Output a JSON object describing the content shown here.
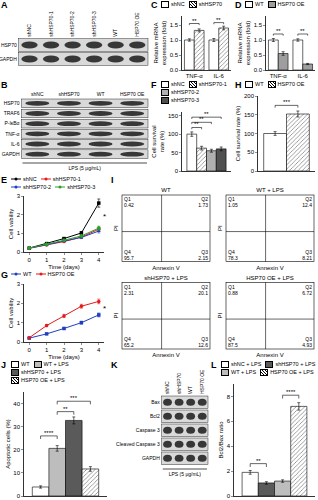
{
  "chart_data": [
    {
      "type": "blot",
      "panel": "A",
      "rows": [
        "HSP70",
        "GAPDH"
      ],
      "lanes": [
        "shNC",
        "shHSP70-1",
        "shHSP70-2",
        "shHSP70-3",
        "WT",
        "HSP70 OE"
      ]
    },
    {
      "type": "bar",
      "panel": "C",
      "categories": [
        "TNF-α",
        "IL-6"
      ],
      "y_label": "Relative mRNA expression (fold)",
      "ylim": [
        0,
        1.8
      ],
      "yticks": [
        {
          "value": 0,
          "label": "0.0"
        },
        {
          "value": 0.5,
          "label": "0.5"
        },
        {
          "value": 1,
          "label": "1.0"
        },
        {
          "value": 1.5,
          "label": "1.5"
        }
      ],
      "legend": "top",
      "series": [
        {
          "name": "shNC",
          "color": "#ffffff",
          "values": [
            1.0,
            1.0
          ],
          "errors": [
            0.04,
            0.05
          ]
        },
        {
          "name": "shHSP70",
          "color": "#ffffff",
          "marker": "hatch",
          "values": [
            1.32,
            1.4
          ],
          "errors": [
            0.05,
            0.06
          ]
        }
      ],
      "significance": [
        {
          "category": "TNF-α",
          "from": "shNC",
          "to": "shHSP70",
          "y": 1.55,
          "label": "**"
        },
        {
          "category": "IL-6",
          "from": "shNC",
          "to": "shHSP70",
          "y": 1.58,
          "label": "**"
        }
      ]
    },
    {
      "type": "bar",
      "panel": "D",
      "categories": [
        "TNF-α",
        "IL-6"
      ],
      "y_label": "Relative mRNA expression (fold)",
      "ylim": [
        0,
        1.8
      ],
      "yticks": [
        {
          "value": 0,
          "label": "0.0"
        },
        {
          "value": 0.5,
          "label": "0.5"
        },
        {
          "value": 1,
          "label": "1.0"
        },
        {
          "value": 1.5,
          "label": "1.5"
        }
      ],
      "legend": "top",
      "series": [
        {
          "name": "WT",
          "color": "#ffffff",
          "values": [
            1.0,
            1.0
          ],
          "errors": [
            0.05,
            0.04
          ]
        },
        {
          "name": "HSP70 OE",
          "color": "#9e9e9e",
          "values": [
            0.55,
            0.2
          ],
          "errors": [
            0.06,
            0.02
          ]
        }
      ],
      "significance": [
        {
          "category": "TNF-α",
          "from": "WT",
          "to": "HSP70 OE",
          "y": 1.2,
          "label": "**"
        },
        {
          "category": "IL-6",
          "from": "WT",
          "to": "HSP70 OE",
          "y": 1.2,
          "label": "**"
        }
      ]
    },
    {
      "type": "blot",
      "panel": "B",
      "rows": [
        "HSP70",
        "TRAF6",
        "P-IκBα",
        "TNF-α",
        "IL-6",
        "GAPDH"
      ],
      "lanes": [
        "shNC",
        "shHSP70",
        "WT",
        "HSP70 OE"
      ],
      "treatment": "LPS (5 μg/mL)"
    },
    {
      "type": "bar",
      "panel": "F",
      "categories": [
        null
      ],
      "y_label": "Cell survival rate (%)",
      "tick_labels": "y",
      "ylim": [
        0,
        160
      ],
      "yticks": [
        0,
        50,
        100,
        150
      ],
      "legend": "top",
      "series": [
        {
          "name": "shNC",
          "color": "#ffffff",
          "values": [
            100
          ],
          "errors": [
            6
          ]
        },
        {
          "name": "shHSP70-1",
          "color": "#ffffff",
          "marker": "hatch",
          "values": [
            62
          ],
          "errors": [
            5
          ]
        },
        {
          "name": "shHSP70-2",
          "color": "#b0b0b0",
          "values": [
            55
          ],
          "errors": [
            4
          ]
        },
        {
          "name": "shHSP70-3",
          "color": "#505050",
          "values": [
            60
          ],
          "errors": [
            5
          ]
        }
      ],
      "significance": [
        {
          "from": "shNC",
          "to": "shHSP70-1",
          "y": 118,
          "label": "**"
        },
        {
          "from": "shNC",
          "to": "shHSP70-2",
          "y": 132,
          "label": "**"
        },
        {
          "from": "shNC",
          "to": "shHSP70-3",
          "y": 146,
          "label": "**"
        }
      ]
    },
    {
      "type": "bar",
      "panel": "H",
      "categories": [
        null
      ],
      "y_label": "Cell survival rate (%)",
      "tick_labels": "y",
      "ylim": [
        0,
        200
      ],
      "yticks": [
        0,
        50,
        100,
        150,
        200
      ],
      "legend": "top",
      "series": [
        {
          "name": "WT",
          "color": "#ffffff",
          "values": [
            100
          ],
          "errors": [
            5
          ]
        },
        {
          "name": "HSP70 OE",
          "color": "#ffffff",
          "marker": "hatch",
          "values": [
            152
          ],
          "errors": [
            8
          ]
        }
      ],
      "significance": [
        {
          "from": "WT",
          "to": "HSP70 OE",
          "y": 175,
          "label": "***"
        }
      ]
    },
    {
      "type": "line",
      "panel": "E",
      "x": [
        0,
        1,
        2,
        3,
        4
      ],
      "xlim": [
        -0.3,
        4.3
      ],
      "xticks": [
        0,
        1,
        2,
        3,
        4
      ],
      "ylim": [
        0,
        3
      ],
      "yticks": [
        0,
        1,
        2,
        3
      ],
      "x_label": "Time (days)",
      "y_label": "Cell vability",
      "legend": "top",
      "series": [
        {
          "name": "shNC",
          "color": "#000000",
          "marker": "square",
          "values": [
            0.21,
            0.45,
            0.72,
            1.02,
            2.62
          ],
          "errors": [
            0.02,
            0.04,
            0.05,
            0.08,
            0.22
          ]
        },
        {
          "name": "shHSP70-1",
          "color": "#e41a1c",
          "marker": "circle",
          "values": [
            0.2,
            0.38,
            0.56,
            0.8,
            1.22
          ],
          "errors": [
            0.02,
            0.03,
            0.04,
            0.06,
            0.1
          ]
        },
        {
          "name": "shHSP70-2",
          "color": "#1f3fbf",
          "marker": "triangle-up",
          "values": [
            0.2,
            0.4,
            0.6,
            0.78,
            1.12
          ],
          "errors": [
            0.02,
            0.03,
            0.04,
            0.06,
            0.1
          ]
        },
        {
          "name": "shHSP70-3",
          "color": "#2ca02c",
          "marker": "diamond",
          "values": [
            0.21,
            0.41,
            0.63,
            0.86,
            1.28
          ],
          "errors": [
            0.02,
            0.03,
            0.04,
            0.06,
            0.1
          ]
        }
      ],
      "annotations": [
        {
          "text": "*",
          "x": 4,
          "y": 1.9
        }
      ]
    },
    {
      "type": "line",
      "panel": "G",
      "x": [
        0,
        1,
        2,
        3,
        4
      ],
      "xlim": [
        -0.3,
        4.3
      ],
      "xticks": [
        0,
        1,
        2,
        3,
        4
      ],
      "ylim": [
        0,
        3
      ],
      "yticks": [
        0,
        1,
        2,
        3
      ],
      "x_label": "Time (days)",
      "y_label": "Cell vability",
      "legend": "top",
      "series": [
        {
          "name": "WT",
          "color": "#1f3fbf",
          "marker": "square",
          "values": [
            0.2,
            0.42,
            0.7,
            1.0,
            1.4
          ],
          "errors": [
            0.02,
            0.03,
            0.05,
            0.07,
            0.1
          ]
        },
        {
          "name": "HSP70 OE",
          "color": "#e41a1c",
          "marker": "circle",
          "values": [
            0.22,
            0.85,
            1.35,
            1.85,
            2.1
          ],
          "errors": [
            0.02,
            0.06,
            0.08,
            0.1,
            0.12
          ]
        }
      ],
      "annotations": [
        {
          "text": "*",
          "x": 4,
          "y": 1.75
        }
      ]
    },
    {
      "type": "flow",
      "panel": "I",
      "x_label": "Annexin V",
      "y_label": "PI",
      "plots": [
        {
          "title": "WT",
          "quadrants": [
            {
              "label": "Q1",
              "value": 0.42
            },
            {
              "label": "Q2",
              "value": 1.73
            },
            {
              "label": "Q3",
              "value": 2.15
            },
            {
              "label": "Q4",
              "value": 95.7
            }
          ]
        },
        {
          "title": "WT + LPS",
          "quadrants": [
            {
              "label": "Q1",
              "value": 1.05
            },
            {
              "label": "Q2",
              "value": 12.4
            },
            {
              "label": "Q3",
              "value": 8.21
            },
            {
              "label": "Q4",
              "value": 78.3
            }
          ]
        },
        {
          "title": "shHSP70 + LPS",
          "quadrants": [
            {
              "label": "Q1",
              "value": 2.31
            },
            {
              "label": "Q2",
              "value": 20.1
            },
            {
              "label": "Q3",
              "value": 12.6
            },
            {
              "label": "Q4",
              "value": 65.2
            }
          ]
        },
        {
          "title": "HSP70 OE + LPS",
          "quadrants": [
            {
              "label": "Q1",
              "value": 0.88
            },
            {
              "label": "Q2",
              "value": 6.72
            },
            {
              "label": "Q3",
              "value": 4.93
            },
            {
              "label": "Q4",
              "value": 87.5
            }
          ]
        }
      ]
    },
    {
      "type": "bar",
      "panel": "J",
      "categories": [
        null
      ],
      "y_label": "Apoptotic cells (%)",
      "tick_labels": "y",
      "ylim": [
        0,
        45
      ],
      "yticks": [
        0,
        10,
        20,
        30,
        40
      ],
      "legend": "top",
      "series": [
        {
          "name": "WT",
          "color": "#ffffff",
          "values": [
            3.9
          ],
          "errors": [
            0.5
          ]
        },
        {
          "name": "WT + LPS",
          "color": "#bdbdbd",
          "values": [
            20.6
          ],
          "errors": [
            1.2
          ]
        },
        {
          "name": "shHSP70 + LPS",
          "color": "#5a5a5a",
          "values": [
            32.7
          ],
          "errors": [
            1.5
          ]
        },
        {
          "name": "HSP70 OE + LPS",
          "color": "#ffffff",
          "marker": "hatch",
          "values": [
            11.7
          ],
          "errors": [
            1.0
          ]
        }
      ],
      "significance": [
        {
          "from": "WT",
          "to": "WT + LPS",
          "y": 26,
          "label": "****"
        },
        {
          "from": "WT + LPS",
          "to": "shHSP70 + LPS",
          "y": 36.5,
          "label": "**"
        },
        {
          "from": "WT + LPS",
          "to": "HSP70 OE + LPS",
          "y": 41,
          "label": "***"
        }
      ]
    },
    {
      "type": "blot",
      "panel": "K",
      "rows": [
        "Bax",
        "Bcl2",
        "Caspase 3",
        "Cleaved Caspase 3",
        "GAPDH"
      ],
      "lanes": [
        "shNC",
        "shHSP70",
        "WT",
        "HSP70 OE"
      ],
      "treatment": "LPS (5 μg/mL)"
    },
    {
      "type": "bar",
      "panel": "L",
      "categories": [
        null
      ],
      "y_label": "Bcl2/Bax ratio",
      "tick_labels": "y",
      "ylim": [
        0,
        9
      ],
      "yticks": [
        0,
        2,
        4,
        6,
        8
      ],
      "legend": "top",
      "series": [
        {
          "name": "shNC + LPS",
          "color": "#ffffff",
          "values": [
            1.9
          ],
          "errors": [
            0.15
          ]
        },
        {
          "name": "shHSP70 + LPS",
          "color": "#5a5a5a",
          "values": [
            1.05
          ],
          "errors": [
            0.1
          ]
        },
        {
          "name": "WT + LPS",
          "color": "#bdbdbd",
          "values": [
            1.2
          ],
          "errors": [
            0.1
          ]
        },
        {
          "name": "HSP70 OE + LPS",
          "color": "#ffffff",
          "marker": "hatch",
          "values": [
            7.2
          ],
          "errors": [
            0.3
          ]
        }
      ],
      "significance": [
        {
          "from": "shNC + LPS",
          "to": "shHSP70 + LPS",
          "y": 2.6,
          "label": "**"
        },
        {
          "from": "WT + LPS",
          "to": "HSP70 OE + LPS",
          "y": 8.1,
          "label": "****"
        }
      ]
    }
  ]
}
